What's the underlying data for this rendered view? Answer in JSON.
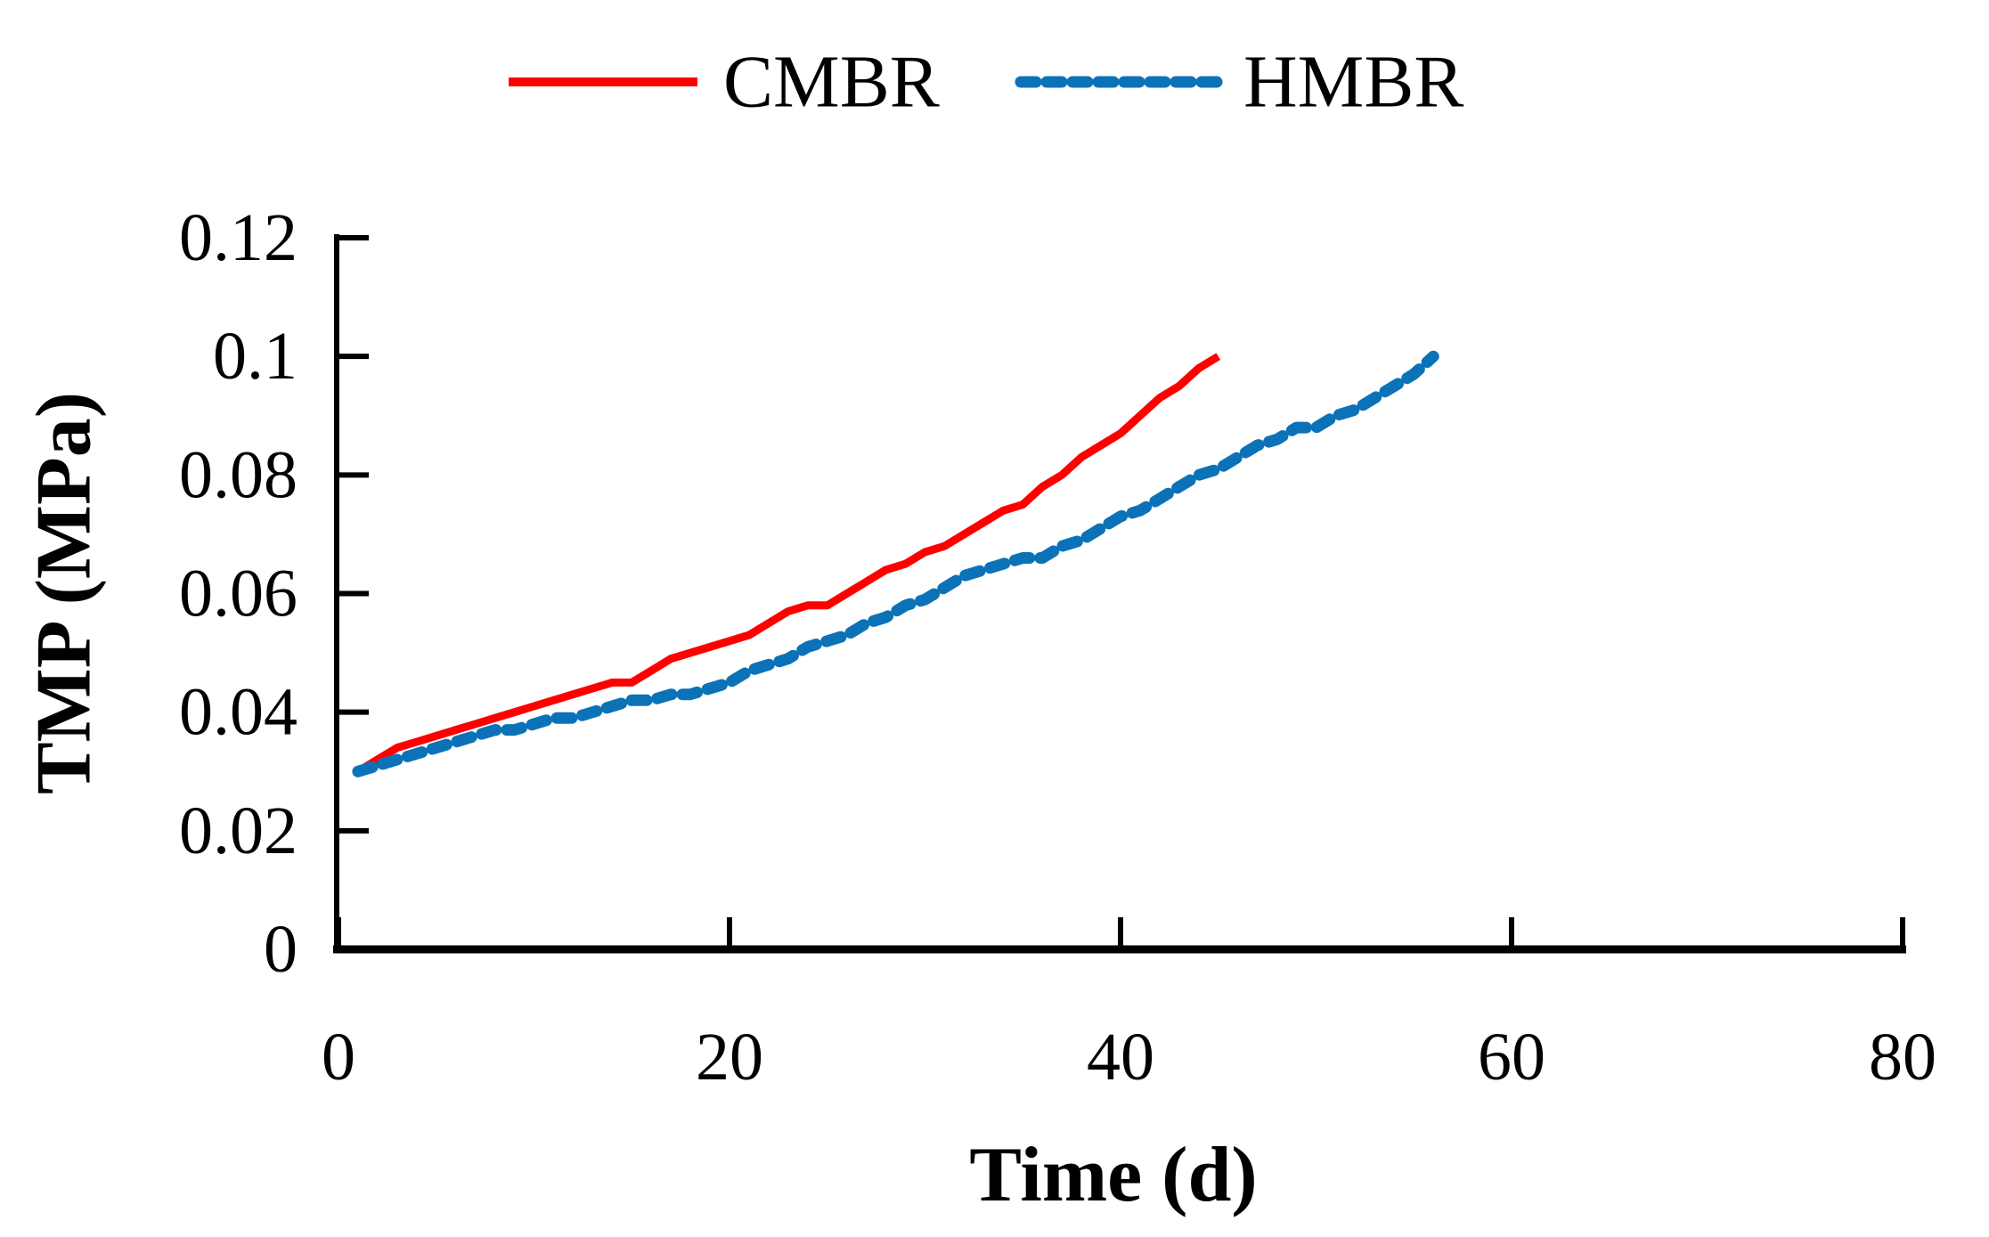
{
  "chart_data": {
    "type": "line",
    "title": "",
    "xlabel": "Time (d)",
    "ylabel": "TMP (MPa)",
    "xlim": [
      0,
      80
    ],
    "ylim": [
      0,
      0.12
    ],
    "x_ticks": [
      0,
      20,
      40,
      60,
      80
    ],
    "x_tick_labels": [
      "0",
      "20",
      "40",
      "60",
      "80"
    ],
    "y_ticks": [
      0,
      0.02,
      0.04,
      0.06,
      0.08,
      0.1,
      0.12
    ],
    "y_tick_labels": [
      "0",
      "0.02",
      "0.04",
      "0.06",
      "0.08",
      "0.1",
      "0.12"
    ],
    "grid": false,
    "legend_position": "top-center",
    "axis_color": "#000000",
    "series": [
      {
        "name": "CMBR",
        "color": "#FF0000",
        "style": "solid",
        "x": [
          1,
          2,
          3,
          4,
          5,
          6,
          7,
          8,
          9,
          10,
          11,
          12,
          13,
          14,
          15,
          16,
          17,
          18,
          19,
          20,
          21,
          22,
          23,
          24,
          25,
          26,
          27,
          28,
          29,
          30,
          31,
          32,
          33,
          34,
          35,
          36,
          37,
          38,
          39,
          40,
          41,
          42,
          43,
          44,
          45
        ],
        "y": [
          0.03,
          0.032,
          0.034,
          0.035,
          0.036,
          0.037,
          0.038,
          0.039,
          0.04,
          0.041,
          0.042,
          0.043,
          0.044,
          0.045,
          0.045,
          0.047,
          0.049,
          0.05,
          0.051,
          0.052,
          0.053,
          0.055,
          0.057,
          0.058,
          0.058,
          0.06,
          0.062,
          0.064,
          0.065,
          0.067,
          0.068,
          0.07,
          0.072,
          0.074,
          0.075,
          0.078,
          0.08,
          0.083,
          0.085,
          0.087,
          0.09,
          0.093,
          0.095,
          0.098,
          0.1
        ]
      },
      {
        "name": "HMBR",
        "color": "#0C72B8",
        "style": "dashed",
        "x": [
          1,
          2,
          3,
          4,
          5,
          6,
          7,
          8,
          9,
          10,
          11,
          12,
          13,
          14,
          15,
          16,
          17,
          18,
          19,
          20,
          21,
          22,
          23,
          24,
          25,
          26,
          27,
          28,
          29,
          30,
          31,
          32,
          33,
          34,
          35,
          36,
          37,
          38,
          39,
          40,
          41,
          42,
          43,
          44,
          45,
          46,
          47,
          48,
          49,
          50,
          51,
          52,
          53,
          54,
          55,
          56
        ],
        "y": [
          0.03,
          0.031,
          0.032,
          0.033,
          0.034,
          0.035,
          0.036,
          0.037,
          0.037,
          0.038,
          0.039,
          0.039,
          0.04,
          0.041,
          0.042,
          0.042,
          0.043,
          0.043,
          0.044,
          0.045,
          0.047,
          0.048,
          0.049,
          0.051,
          0.052,
          0.053,
          0.055,
          0.056,
          0.058,
          0.059,
          0.061,
          0.063,
          0.064,
          0.065,
          0.066,
          0.066,
          0.068,
          0.069,
          0.071,
          0.073,
          0.074,
          0.076,
          0.078,
          0.08,
          0.081,
          0.083,
          0.085,
          0.086,
          0.088,
          0.088,
          0.09,
          0.091,
          0.093,
          0.095,
          0.097,
          0.1
        ]
      }
    ]
  }
}
